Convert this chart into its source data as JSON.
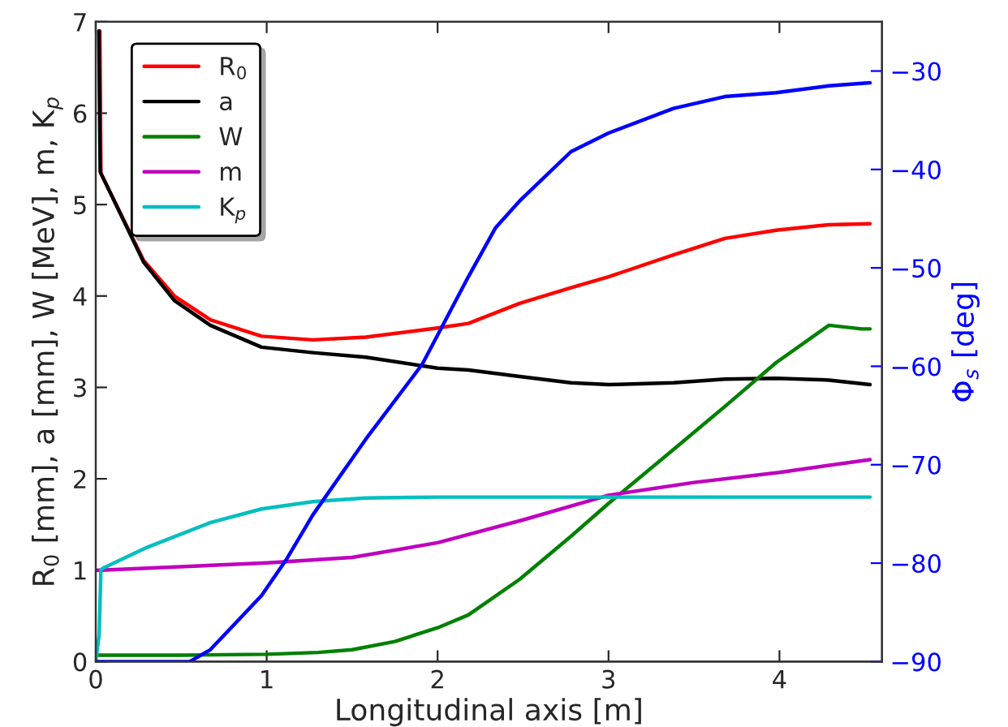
{
  "chart_data": {
    "type": "line",
    "xlabel": "Longitudinal axis [m]",
    "ylabel": "R$_{0}$ [mm], a [mm], W [MeV], m, K$_{p}$",
    "y2label": "Φ$_{s}$ [deg]",
    "xlim": [
      0,
      4.6
    ],
    "ylim": [
      0,
      7
    ],
    "y2lim": [
      -90,
      -25
    ],
    "xticks": [
      0,
      1,
      2,
      3,
      4
    ],
    "yticks": [
      0,
      1,
      2,
      3,
      4,
      5,
      6,
      7
    ],
    "y2ticks": [
      -90,
      -80,
      -70,
      -60,
      -50,
      -40,
      -30
    ],
    "grid": false,
    "legend": "top left",
    "line_style": "solid",
    "marker": "none",
    "series": [
      {
        "name": "R$_{0}$",
        "color": "#ff0000",
        "x": [
          0.024,
          0.03,
          0.28,
          0.46,
          0.67,
          0.97,
          1.27,
          1.58,
          2.0,
          2.18,
          2.48,
          2.78,
          3.0,
          3.38,
          3.68,
          3.98,
          4.29,
          4.53
        ],
        "values": [
          6.9,
          5.34,
          4.39,
          4.0,
          3.74,
          3.56,
          3.52,
          3.55,
          3.65,
          3.7,
          3.92,
          4.09,
          4.21,
          4.45,
          4.63,
          4.72,
          4.78,
          4.79
        ]
      },
      {
        "name": "a",
        "color": "#000000",
        "x": [
          0.018,
          0.026,
          0.28,
          0.46,
          0.67,
          0.97,
          1.27,
          1.58,
          2.0,
          2.18,
          2.48,
          2.78,
          3.0,
          3.38,
          3.68,
          3.98,
          4.29,
          4.53
        ],
        "values": [
          6.9,
          5.36,
          4.37,
          3.95,
          3.68,
          3.44,
          3.38,
          3.33,
          3.21,
          3.19,
          3.12,
          3.05,
          3.03,
          3.05,
          3.09,
          3.1,
          3.08,
          3.03
        ]
      },
      {
        "name": "W",
        "color": "#008000",
        "x": [
          0,
          0.5,
          1.0,
          1.3,
          1.5,
          1.75,
          2.0,
          2.18,
          2.48,
          2.78,
          3.0,
          3.38,
          3.68,
          3.98,
          4.29,
          4.48,
          4.53
        ],
        "values": [
          0.07,
          0.07,
          0.08,
          0.1,
          0.13,
          0.22,
          0.37,
          0.51,
          0.9,
          1.37,
          1.73,
          2.32,
          2.79,
          3.27,
          3.68,
          3.64,
          3.64
        ]
      },
      {
        "name": "m",
        "color": "#bf00bf",
        "x": [
          0,
          0.03,
          1.0,
          1.5,
          2.0,
          2.5,
          3.0,
          3.5,
          4.0,
          4.53
        ],
        "values": [
          1.0,
          1.0,
          1.08,
          1.14,
          1.3,
          1.55,
          1.82,
          1.96,
          2.07,
          2.21
        ]
      },
      {
        "name": "K$_{p}$",
        "color": "#00bfbf",
        "x": [
          0,
          0.02,
          0.03,
          0.04,
          0.3,
          0.67,
          0.97,
          1.27,
          1.58,
          2.0,
          4.53
        ],
        "values": [
          0,
          0.3,
          1.0,
          1.02,
          1.25,
          1.52,
          1.67,
          1.75,
          1.79,
          1.8,
          1.8
        ]
      },
      {
        "color": "#0000ff",
        "axis": "y2",
        "x": [
          0,
          0.55,
          0.67,
          0.97,
          1.12,
          1.27,
          1.58,
          1.91,
          2.18,
          2.34,
          2.48,
          2.78,
          3.0,
          3.38,
          3.68,
          3.98,
          4.29,
          4.53
        ],
        "values": [
          -90,
          -90,
          -88.8,
          -83.3,
          -79.5,
          -75.1,
          -67.4,
          -59.8,
          -50.9,
          -45.9,
          -43.2,
          -38.2,
          -36.3,
          -33.8,
          -32.6,
          -32.2,
          -31.5,
          -31.2
        ]
      }
    ]
  }
}
